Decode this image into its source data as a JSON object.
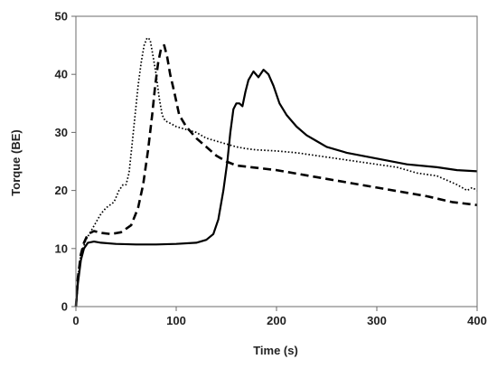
{
  "chart_data": {
    "type": "line",
    "title": "",
    "xlabel": "Time (s)",
    "ylabel": "Torque (BE)",
    "xlim": [
      0,
      400
    ],
    "ylim": [
      0,
      50
    ],
    "xticks": [
      0,
      100,
      200,
      300,
      400
    ],
    "yticks": [
      0,
      10,
      20,
      30,
      40,
      50
    ],
    "grid": false,
    "legend": "none",
    "series": [
      {
        "style": "dotted",
        "color": "#000000",
        "points": [
          [
            0,
            0
          ],
          [
            2,
            5
          ],
          [
            5,
            9
          ],
          [
            10,
            11.5
          ],
          [
            15,
            13
          ],
          [
            20,
            14.5
          ],
          [
            25,
            16
          ],
          [
            30,
            17
          ],
          [
            38,
            18
          ],
          [
            43,
            20
          ],
          [
            47,
            21
          ],
          [
            50,
            21
          ],
          [
            53,
            23
          ],
          [
            56,
            28
          ],
          [
            59,
            33
          ],
          [
            62,
            38
          ],
          [
            65,
            42
          ],
          [
            68,
            45
          ],
          [
            71,
            46.3
          ],
          [
            74,
            46
          ],
          [
            77,
            43
          ],
          [
            80,
            40
          ],
          [
            83,
            36
          ],
          [
            86,
            33
          ],
          [
            89,
            32
          ],
          [
            95,
            31.5
          ],
          [
            100,
            31
          ],
          [
            110,
            30.5
          ],
          [
            120,
            30
          ],
          [
            130,
            29
          ],
          [
            140,
            28.5
          ],
          [
            150,
            28
          ],
          [
            160,
            27.5
          ],
          [
            170,
            27.2
          ],
          [
            180,
            27
          ],
          [
            200,
            26.8
          ],
          [
            220,
            26.5
          ],
          [
            240,
            26
          ],
          [
            260,
            25.5
          ],
          [
            280,
            25
          ],
          [
            300,
            24.5
          ],
          [
            320,
            24
          ],
          [
            340,
            23
          ],
          [
            360,
            22.5
          ],
          [
            380,
            21
          ],
          [
            390,
            20
          ],
          [
            395,
            20.5
          ],
          [
            400,
            20
          ]
        ]
      },
      {
        "style": "dashed",
        "color": "#000000",
        "points": [
          [
            0,
            0
          ],
          [
            2,
            5
          ],
          [
            5,
            9
          ],
          [
            8,
            11
          ],
          [
            12,
            12.5
          ],
          [
            18,
            13
          ],
          [
            25,
            12.7
          ],
          [
            35,
            12.5
          ],
          [
            45,
            12.8
          ],
          [
            55,
            14
          ],
          [
            62,
            17
          ],
          [
            67,
            21
          ],
          [
            72,
            27
          ],
          [
            76,
            33
          ],
          [
            79,
            38
          ],
          [
            82,
            42
          ],
          [
            85,
            44.5
          ],
          [
            88,
            45
          ],
          [
            91,
            43
          ],
          [
            94,
            40
          ],
          [
            98,
            37
          ],
          [
            103,
            33
          ],
          [
            110,
            31
          ],
          [
            120,
            29
          ],
          [
            130,
            27.5
          ],
          [
            140,
            26
          ],
          [
            150,
            25
          ],
          [
            160,
            24.3
          ],
          [
            175,
            24
          ],
          [
            200,
            23.5
          ],
          [
            250,
            22
          ],
          [
            300,
            20.5
          ],
          [
            350,
            19
          ],
          [
            375,
            18
          ],
          [
            400,
            17.5
          ]
        ]
      },
      {
        "style": "solid",
        "color": "#000000",
        "points": [
          [
            0,
            0
          ],
          [
            2,
            4
          ],
          [
            5,
            8
          ],
          [
            8,
            10
          ],
          [
            12,
            11
          ],
          [
            18,
            11.2
          ],
          [
            25,
            11
          ],
          [
            40,
            10.8
          ],
          [
            60,
            10.7
          ],
          [
            80,
            10.7
          ],
          [
            100,
            10.8
          ],
          [
            120,
            11
          ],
          [
            130,
            11.5
          ],
          [
            137,
            12.5
          ],
          [
            142,
            15
          ],
          [
            147,
            20
          ],
          [
            151,
            25
          ],
          [
            154,
            30
          ],
          [
            157,
            34
          ],
          [
            160,
            35
          ],
          [
            163,
            35
          ],
          [
            166,
            34.5
          ],
          [
            169,
            37
          ],
          [
            172,
            39
          ],
          [
            177,
            40.5
          ],
          [
            182,
            39.5
          ],
          [
            187,
            40.8
          ],
          [
            192,
            40
          ],
          [
            197,
            38
          ],
          [
            203,
            35
          ],
          [
            210,
            33
          ],
          [
            220,
            31
          ],
          [
            230,
            29.5
          ],
          [
            240,
            28.5
          ],
          [
            250,
            27.5
          ],
          [
            270,
            26.5
          ],
          [
            300,
            25.5
          ],
          [
            330,
            24.5
          ],
          [
            360,
            24
          ],
          [
            380,
            23.5
          ],
          [
            400,
            23.3
          ]
        ]
      }
    ]
  }
}
